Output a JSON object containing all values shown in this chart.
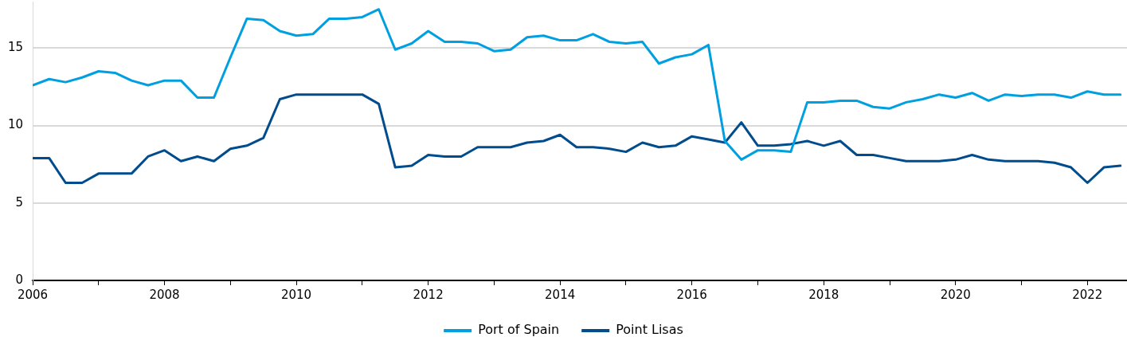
{
  "chart_data": {
    "type": "line",
    "x": [
      2006,
      2006.25,
      2006.5,
      2006.75,
      2007,
      2007.25,
      2007.5,
      2007.75,
      2008,
      2008.25,
      2008.5,
      2008.75,
      2009,
      2009.25,
      2009.5,
      2009.75,
      2010,
      2010.25,
      2010.5,
      2010.75,
      2011,
      2011.25,
      2011.5,
      2011.75,
      2012,
      2012.25,
      2012.5,
      2012.75,
      2013,
      2013.25,
      2013.5,
      2013.75,
      2014,
      2014.25,
      2014.5,
      2014.75,
      2015,
      2015.25,
      2015.5,
      2015.75,
      2016,
      2016.25,
      2016.5,
      2016.75,
      2017,
      2017.25,
      2017.5,
      2017.75,
      2018,
      2018.25,
      2018.5,
      2018.75,
      2019,
      2019.25,
      2019.5,
      2019.75,
      2020,
      2020.25,
      2020.5,
      2020.75,
      2021,
      2021.25,
      2021.5,
      2021.75,
      2022,
      2022.25,
      2022.5
    ],
    "series": [
      {
        "name": "Port of Spain",
        "color": "#009fdf",
        "values": [
          12.6,
          13.0,
          12.8,
          13.1,
          13.5,
          13.4,
          12.9,
          12.6,
          12.9,
          12.9,
          11.8,
          11.8,
          14.4,
          16.9,
          16.8,
          16.1,
          15.8,
          15.9,
          16.9,
          16.9,
          17.0,
          17.5,
          14.9,
          15.3,
          16.1,
          15.4,
          15.4,
          15.3,
          14.8,
          14.9,
          15.7,
          15.8,
          15.5,
          15.5,
          15.9,
          15.4,
          15.3,
          15.4,
          14.0,
          14.4,
          14.6,
          15.2,
          9.0,
          7.8,
          8.4,
          8.4,
          8.3,
          11.5,
          11.5,
          11.6,
          11.6,
          11.2,
          11.1,
          11.5,
          11.7,
          12.0,
          11.8,
          12.1,
          11.6,
          12.0,
          11.9,
          12.0,
          12.0,
          11.8,
          12.2,
          12.0,
          12.0
        ]
      },
      {
        "name": "Point Lisas",
        "color": "#004c8c",
        "values": [
          7.9,
          7.9,
          6.3,
          6.3,
          6.9,
          6.9,
          6.9,
          8.0,
          8.4,
          7.7,
          8.0,
          7.7,
          8.5,
          8.7,
          9.2,
          11.7,
          12.0,
          12.0,
          12.0,
          12.0,
          12.0,
          11.4,
          7.3,
          7.4,
          8.1,
          8.0,
          8.0,
          8.6,
          8.6,
          8.6,
          8.9,
          9.0,
          9.4,
          8.6,
          8.6,
          8.5,
          8.3,
          8.9,
          8.6,
          8.7,
          9.3,
          9.1,
          8.9,
          10.2,
          8.7,
          8.7,
          8.8,
          9.0,
          8.7,
          9.0,
          8.1,
          8.1,
          7.9,
          7.7,
          7.7,
          7.7,
          7.8,
          8.1,
          7.8,
          7.7,
          7.7,
          7.7,
          7.6,
          7.3,
          6.3,
          7.3,
          7.4
        ]
      }
    ],
    "xlim": [
      2006,
      2022.6
    ],
    "xticks": [
      2006,
      {
        "value": 2007,
        "label": null
      },
      2008,
      {
        "value": 2009,
        "label": null
      },
      2010,
      {
        "value": 2011,
        "label": null
      },
      2012,
      {
        "value": 2013,
        "label": null
      },
      2014,
      {
        "value": 2015,
        "label": null
      },
      2016,
      {
        "value": 2017,
        "label": null
      },
      2018,
      {
        "value": 2019,
        "label": null
      },
      2020,
      {
        "value": 2021,
        "label": null
      },
      2022
    ],
    "ylim": [
      0,
      18
    ],
    "yticks": [
      0,
      5,
      10,
      15
    ],
    "grid": "y",
    "legend": "bottom"
  }
}
